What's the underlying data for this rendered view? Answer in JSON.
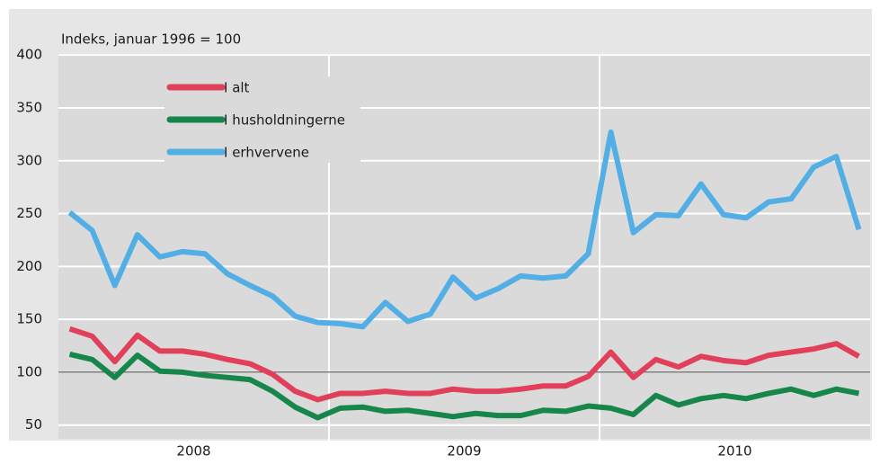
{
  "chart_data": {
    "type": "line",
    "ylabel": "Indeks, januar 1996 = 100",
    "xgroups": [
      "2008",
      "2009",
      "2010"
    ],
    "ylim": [
      37,
      418
    ],
    "yticks": [
      50,
      100,
      150,
      200,
      250,
      300,
      350,
      400
    ],
    "reference_line": 100,
    "grid": true,
    "legend": "upper left",
    "series": [
      {
        "name": "I alt",
        "color": "#e0405a",
        "values": [
          141,
          134,
          110,
          135,
          120,
          120,
          117,
          112,
          108,
          98,
          82,
          74,
          80,
          80,
          82,
          80,
          80,
          84,
          82,
          82,
          84,
          87,
          87,
          96,
          119,
          95,
          112,
          105,
          115,
          111,
          109,
          116,
          119,
          122,
          127,
          115
        ]
      },
      {
        "name": "I husholdningerne",
        "color": "#16864a",
        "values": [
          117,
          112,
          95,
          116,
          101,
          100,
          97,
          95,
          93,
          82,
          67,
          57,
          66,
          67,
          63,
          64,
          61,
          58,
          61,
          59,
          59,
          64,
          63,
          68,
          66,
          60,
          78,
          69,
          75,
          78,
          75,
          80,
          84,
          78,
          84,
          80
        ]
      },
      {
        "name": "I erhvervene",
        "color": "#52aee4",
        "values": [
          251,
          234,
          182,
          230,
          209,
          214,
          212,
          193,
          182,
          172,
          153,
          147,
          146,
          143,
          166,
          148,
          155,
          190,
          170,
          179,
          191,
          189,
          191,
          212,
          327,
          232,
          249,
          248,
          278,
          249,
          246,
          261,
          264,
          294,
          304,
          235
        ]
      }
    ]
  }
}
